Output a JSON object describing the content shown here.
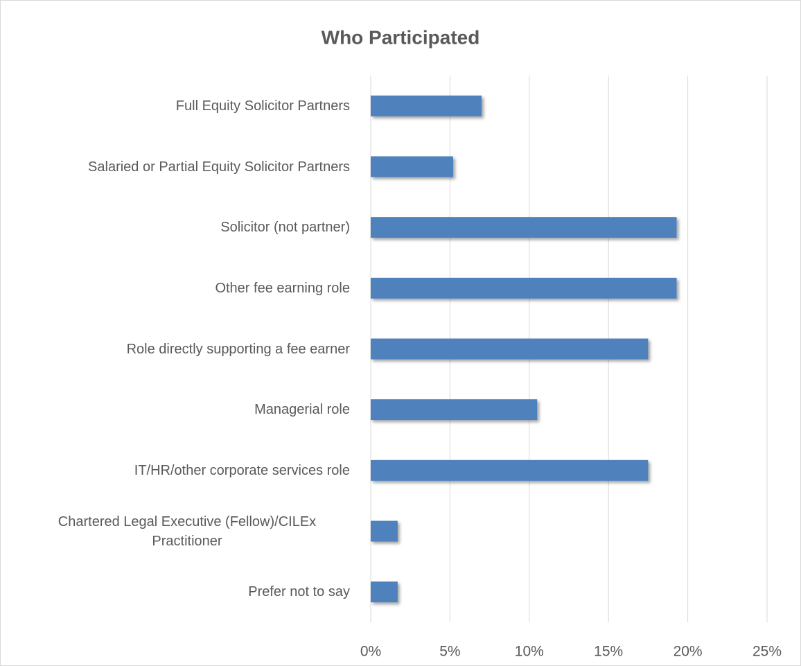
{
  "chart_data": {
    "type": "bar",
    "orientation": "horizontal",
    "title": "Who Participated",
    "categories": [
      "Full Equity Solicitor Partners",
      "Salaried or Partial Equity Solicitor Partners",
      "Solicitor (not partner)",
      "Other fee earning role",
      "Role directly supporting a fee earner",
      "Managerial role",
      "IT/HR/other corporate services role",
      "Chartered Legal Executive (Fellow)/CILEx Practitioner",
      "Prefer not to say"
    ],
    "values": [
      7.0,
      5.2,
      19.3,
      19.3,
      17.5,
      10.5,
      17.5,
      1.7,
      1.7
    ],
    "color": "#4f81bd",
    "xlim": [
      0,
      25
    ],
    "xticks": [
      {
        "value": 0,
        "label": "0%"
      },
      {
        "value": 5,
        "label": "5%"
      },
      {
        "value": 10,
        "label": "10%"
      },
      {
        "value": 15,
        "label": "15%"
      },
      {
        "value": 20,
        "label": "20%"
      },
      {
        "value": 25,
        "label": "25%"
      }
    ],
    "grid": true
  }
}
